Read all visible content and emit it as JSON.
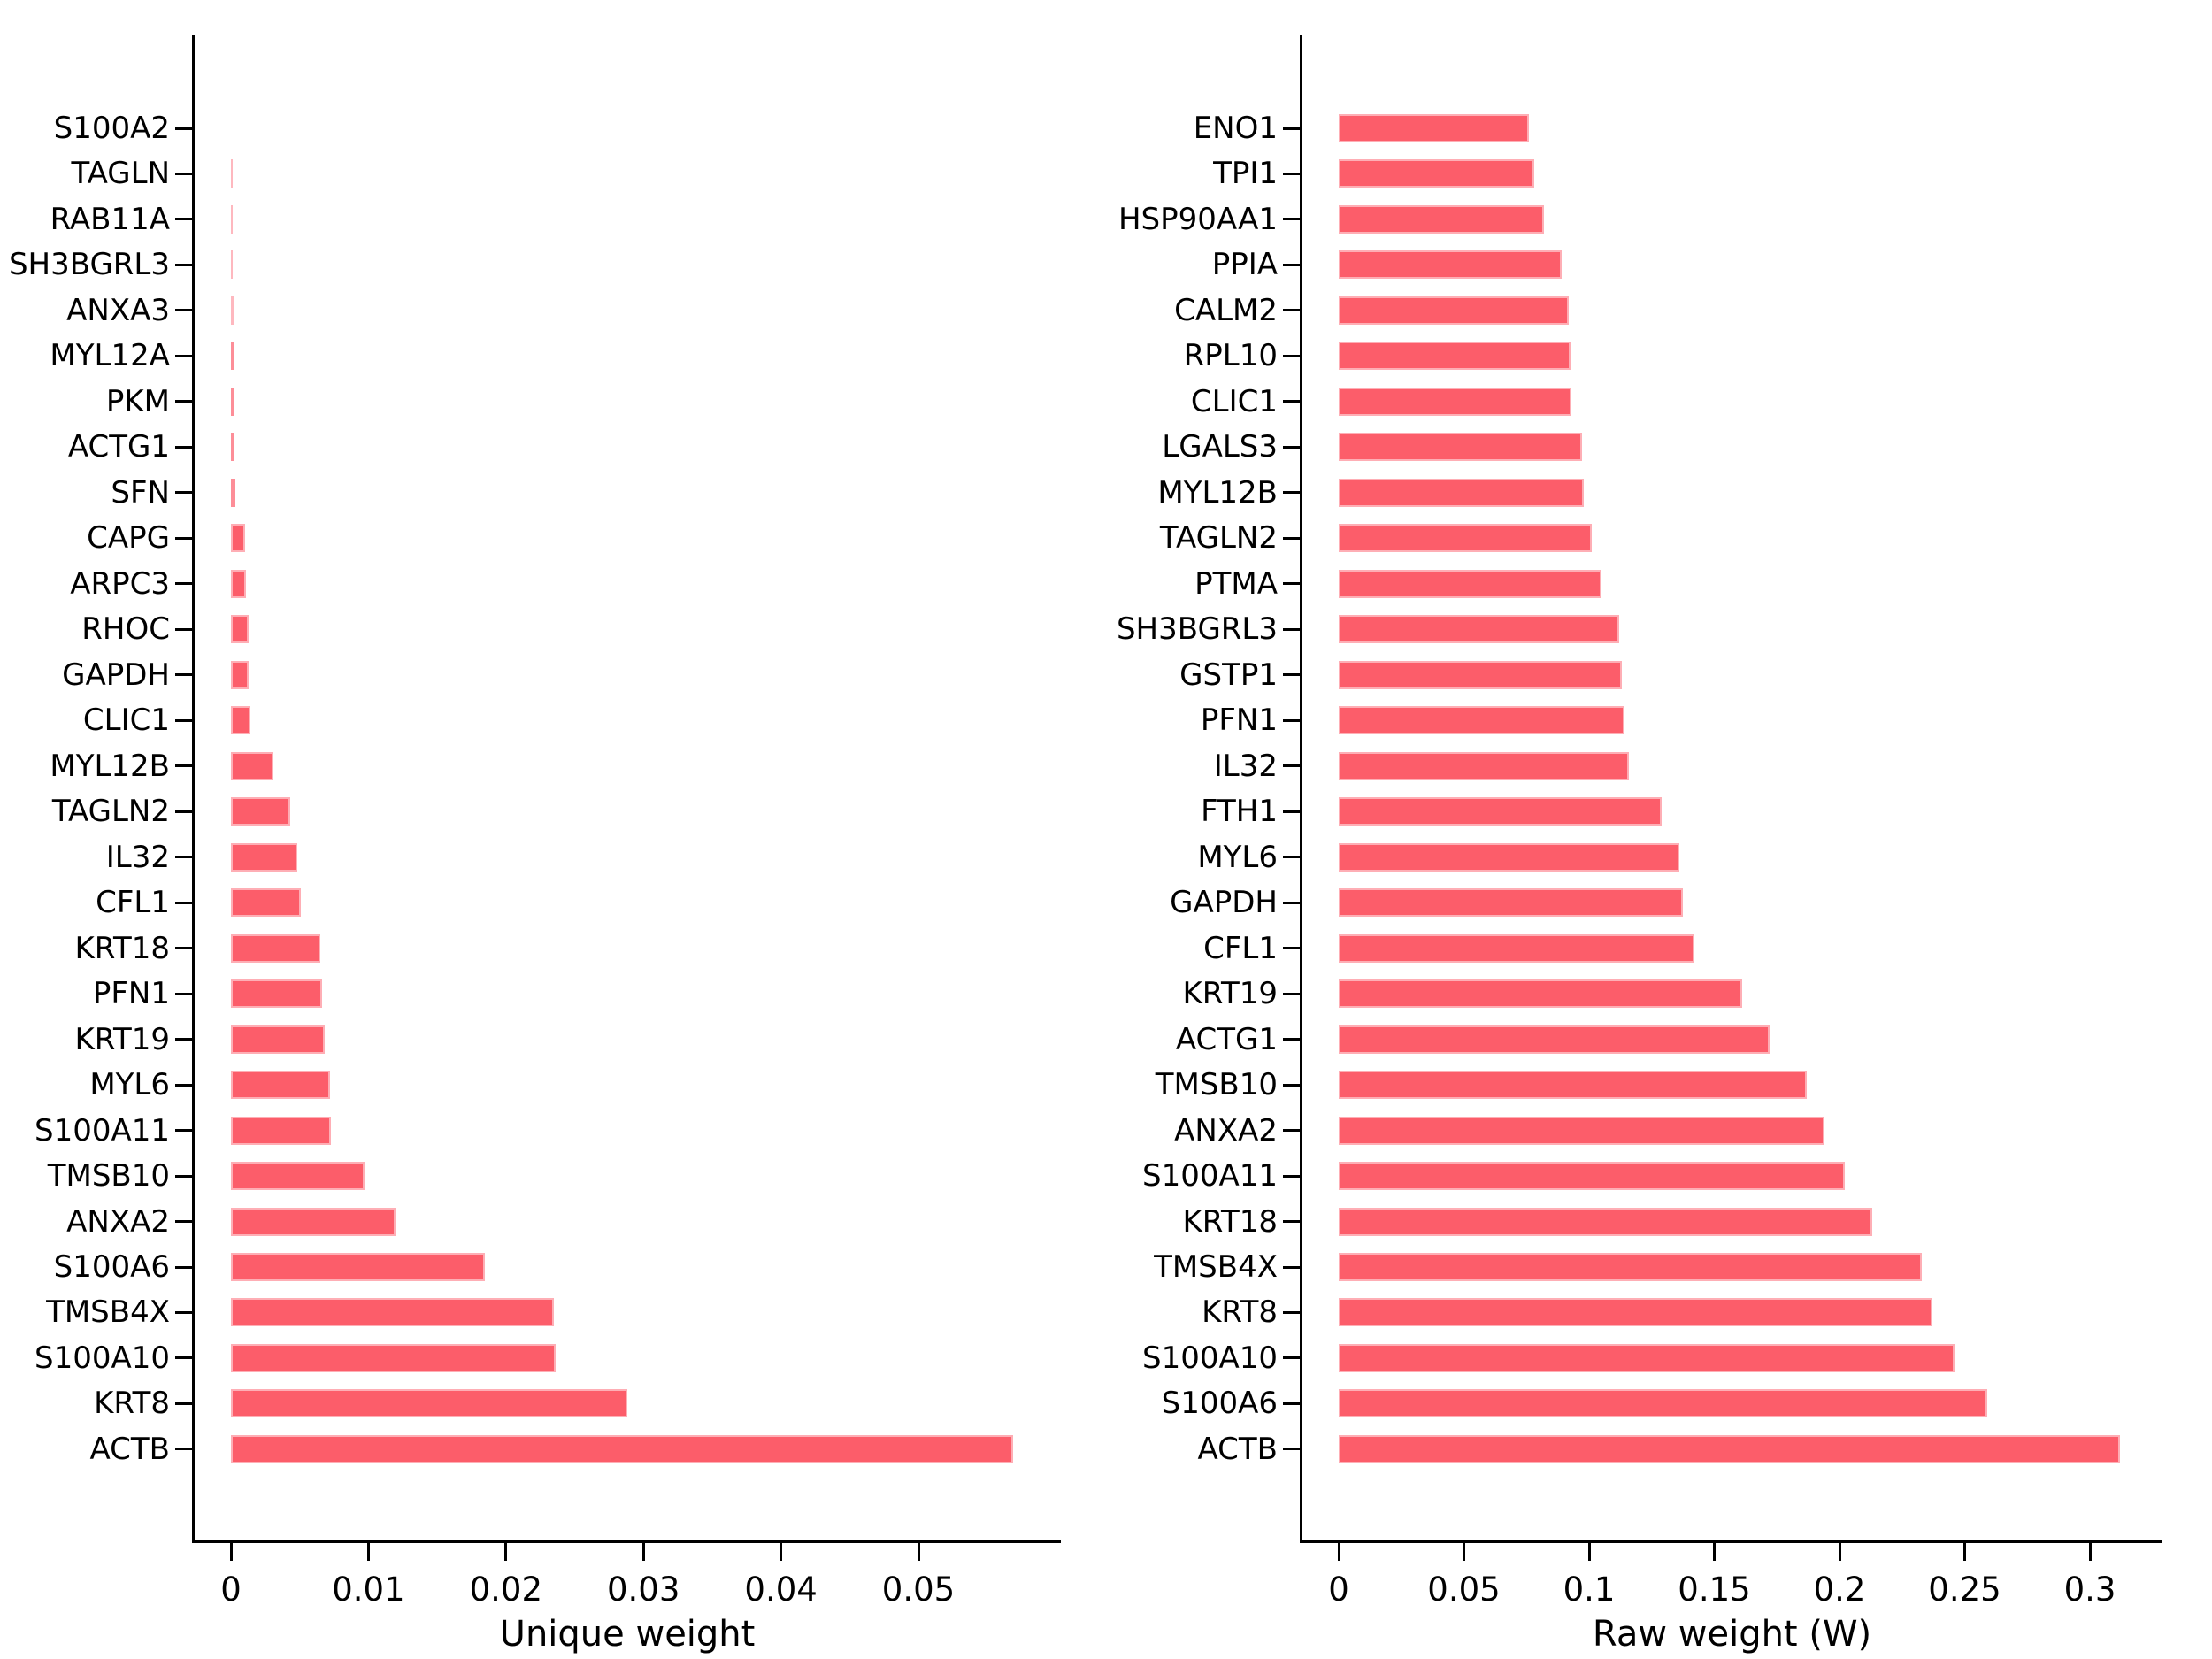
{
  "figure": {
    "background": "#ffffff",
    "bar_color": "#FC5D6A",
    "bar_edge_color": "rgba(255,255,255,0.5)",
    "bar_thin_color": "#FEB8BF",
    "bar_small_color": "#FD8E98",
    "axis_color": "#000000",
    "text_color": "#000000"
  },
  "chart_data": [
    {
      "type": "bar",
      "orientation": "horizontal",
      "xlabel": "Unique weight",
      "legend": "none",
      "grid": false,
      "xlim": [
        0,
        0.0604
      ],
      "x_tick_values": [
        0,
        0.01,
        0.02,
        0.03,
        0.04,
        0.05
      ],
      "x_tick_labels": [
        "0",
        "0.01",
        "0.02",
        "0.03",
        "0.04",
        "0.05"
      ],
      "categories": [
        "S100A2",
        "TAGLN",
        "RAB11A",
        "SH3BGRL3",
        "ANXA3",
        "MYL12A",
        "PKM",
        "ACTG1",
        "SFN",
        "CAPG",
        "ARPC3",
        "RHOC",
        "GAPDH",
        "CLIC1",
        "MYL12B",
        "TAGLN2",
        "IL32",
        "CFL1",
        "KRT18",
        "PFN1",
        "KRT19",
        "MYL6",
        "S100A11",
        "TMSB10",
        "ANXA2",
        "S100A6",
        "TMSB4X",
        "S100A10",
        "KRT8",
        "ACTB"
      ],
      "values": [
        2e-05,
        0.0001,
        0.0001,
        0.00015,
        0.00019,
        0.00022,
        0.00025,
        0.00027,
        0.0003,
        0.001,
        0.0011,
        0.0013,
        0.0013,
        0.0014,
        0.0031,
        0.0043,
        0.0048,
        0.0051,
        0.0065,
        0.0066,
        0.0068,
        0.0072,
        0.0073,
        0.0097,
        0.012,
        0.0185,
        0.0235,
        0.0236,
        0.0288,
        0.0569
      ]
    },
    {
      "type": "bar",
      "orientation": "horizontal",
      "xlabel": "Raw weight (W)",
      "legend": "none",
      "grid": false,
      "xlim": [
        0,
        0.329
      ],
      "x_tick_values": [
        0,
        0.05,
        0.1,
        0.15,
        0.2,
        0.25,
        0.3
      ],
      "x_tick_labels": [
        "0",
        "0.05",
        "0.1",
        "0.15",
        "0.2",
        "0.25",
        "0.3"
      ],
      "categories": [
        "ENO1",
        "TPI1",
        "HSP90AA1",
        "PPIA",
        "CALM2",
        "RPL10",
        "CLIC1",
        "LGALS3",
        "MYL12B",
        "TAGLN2",
        "PTMA",
        "SH3BGRL3",
        "GSTP1",
        "PFN1",
        "IL32",
        "FTH1",
        "MYL6",
        "GAPDH",
        "CFL1",
        "KRT19",
        "ACTG1",
        "TMSB10",
        "ANXA2",
        "S100A11",
        "KRT18",
        "TMSB4X",
        "KRT8",
        "S100A10",
        "S100A6",
        "ACTB"
      ],
      "values": [
        0.076,
        0.078,
        0.082,
        0.089,
        0.092,
        0.0925,
        0.093,
        0.097,
        0.098,
        0.101,
        0.105,
        0.112,
        0.113,
        0.114,
        0.116,
        0.129,
        0.136,
        0.1375,
        0.142,
        0.161,
        0.172,
        0.187,
        0.194,
        0.202,
        0.213,
        0.233,
        0.237,
        0.246,
        0.259,
        0.312
      ]
    }
  ]
}
